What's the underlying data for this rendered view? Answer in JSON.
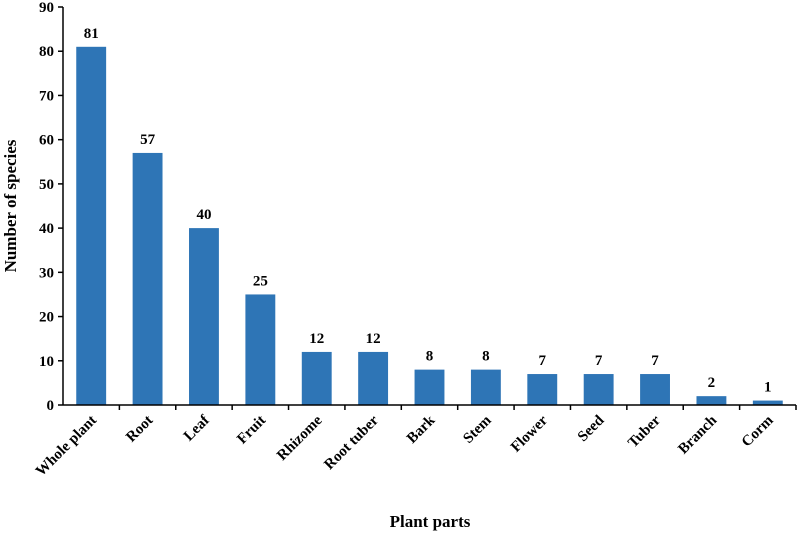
{
  "chart_data": {
    "type": "bar",
    "title": "",
    "xlabel": "Plant parts",
    "ylabel": "Number of species",
    "categories": [
      "Whole plant",
      "Root",
      "Leaf",
      "Fruit",
      "Rhizome",
      "Root tuber",
      "Bark",
      "Stem",
      "Flower",
      "Seed",
      "Tuber",
      "Branch",
      "Corm"
    ],
    "values": [
      81,
      57,
      40,
      25,
      12,
      12,
      8,
      8,
      7,
      7,
      7,
      2,
      1
    ],
    "data_labels": [
      "81",
      "57",
      "40",
      "25",
      "12",
      "12",
      "8",
      "8",
      "7",
      "7",
      "7",
      "2",
      "1"
    ],
    "ylim": [
      0,
      90
    ],
    "yticks": [
      0,
      10,
      20,
      30,
      40,
      50,
      60,
      70,
      80,
      90
    ],
    "ytick_labels": [
      "0",
      "10",
      "20",
      "30",
      "40",
      "50",
      "60",
      "70",
      "80",
      "90"
    ],
    "grid": false,
    "legend": "none",
    "bar_color": "#2E75B6",
    "axis_color": "#000000"
  }
}
